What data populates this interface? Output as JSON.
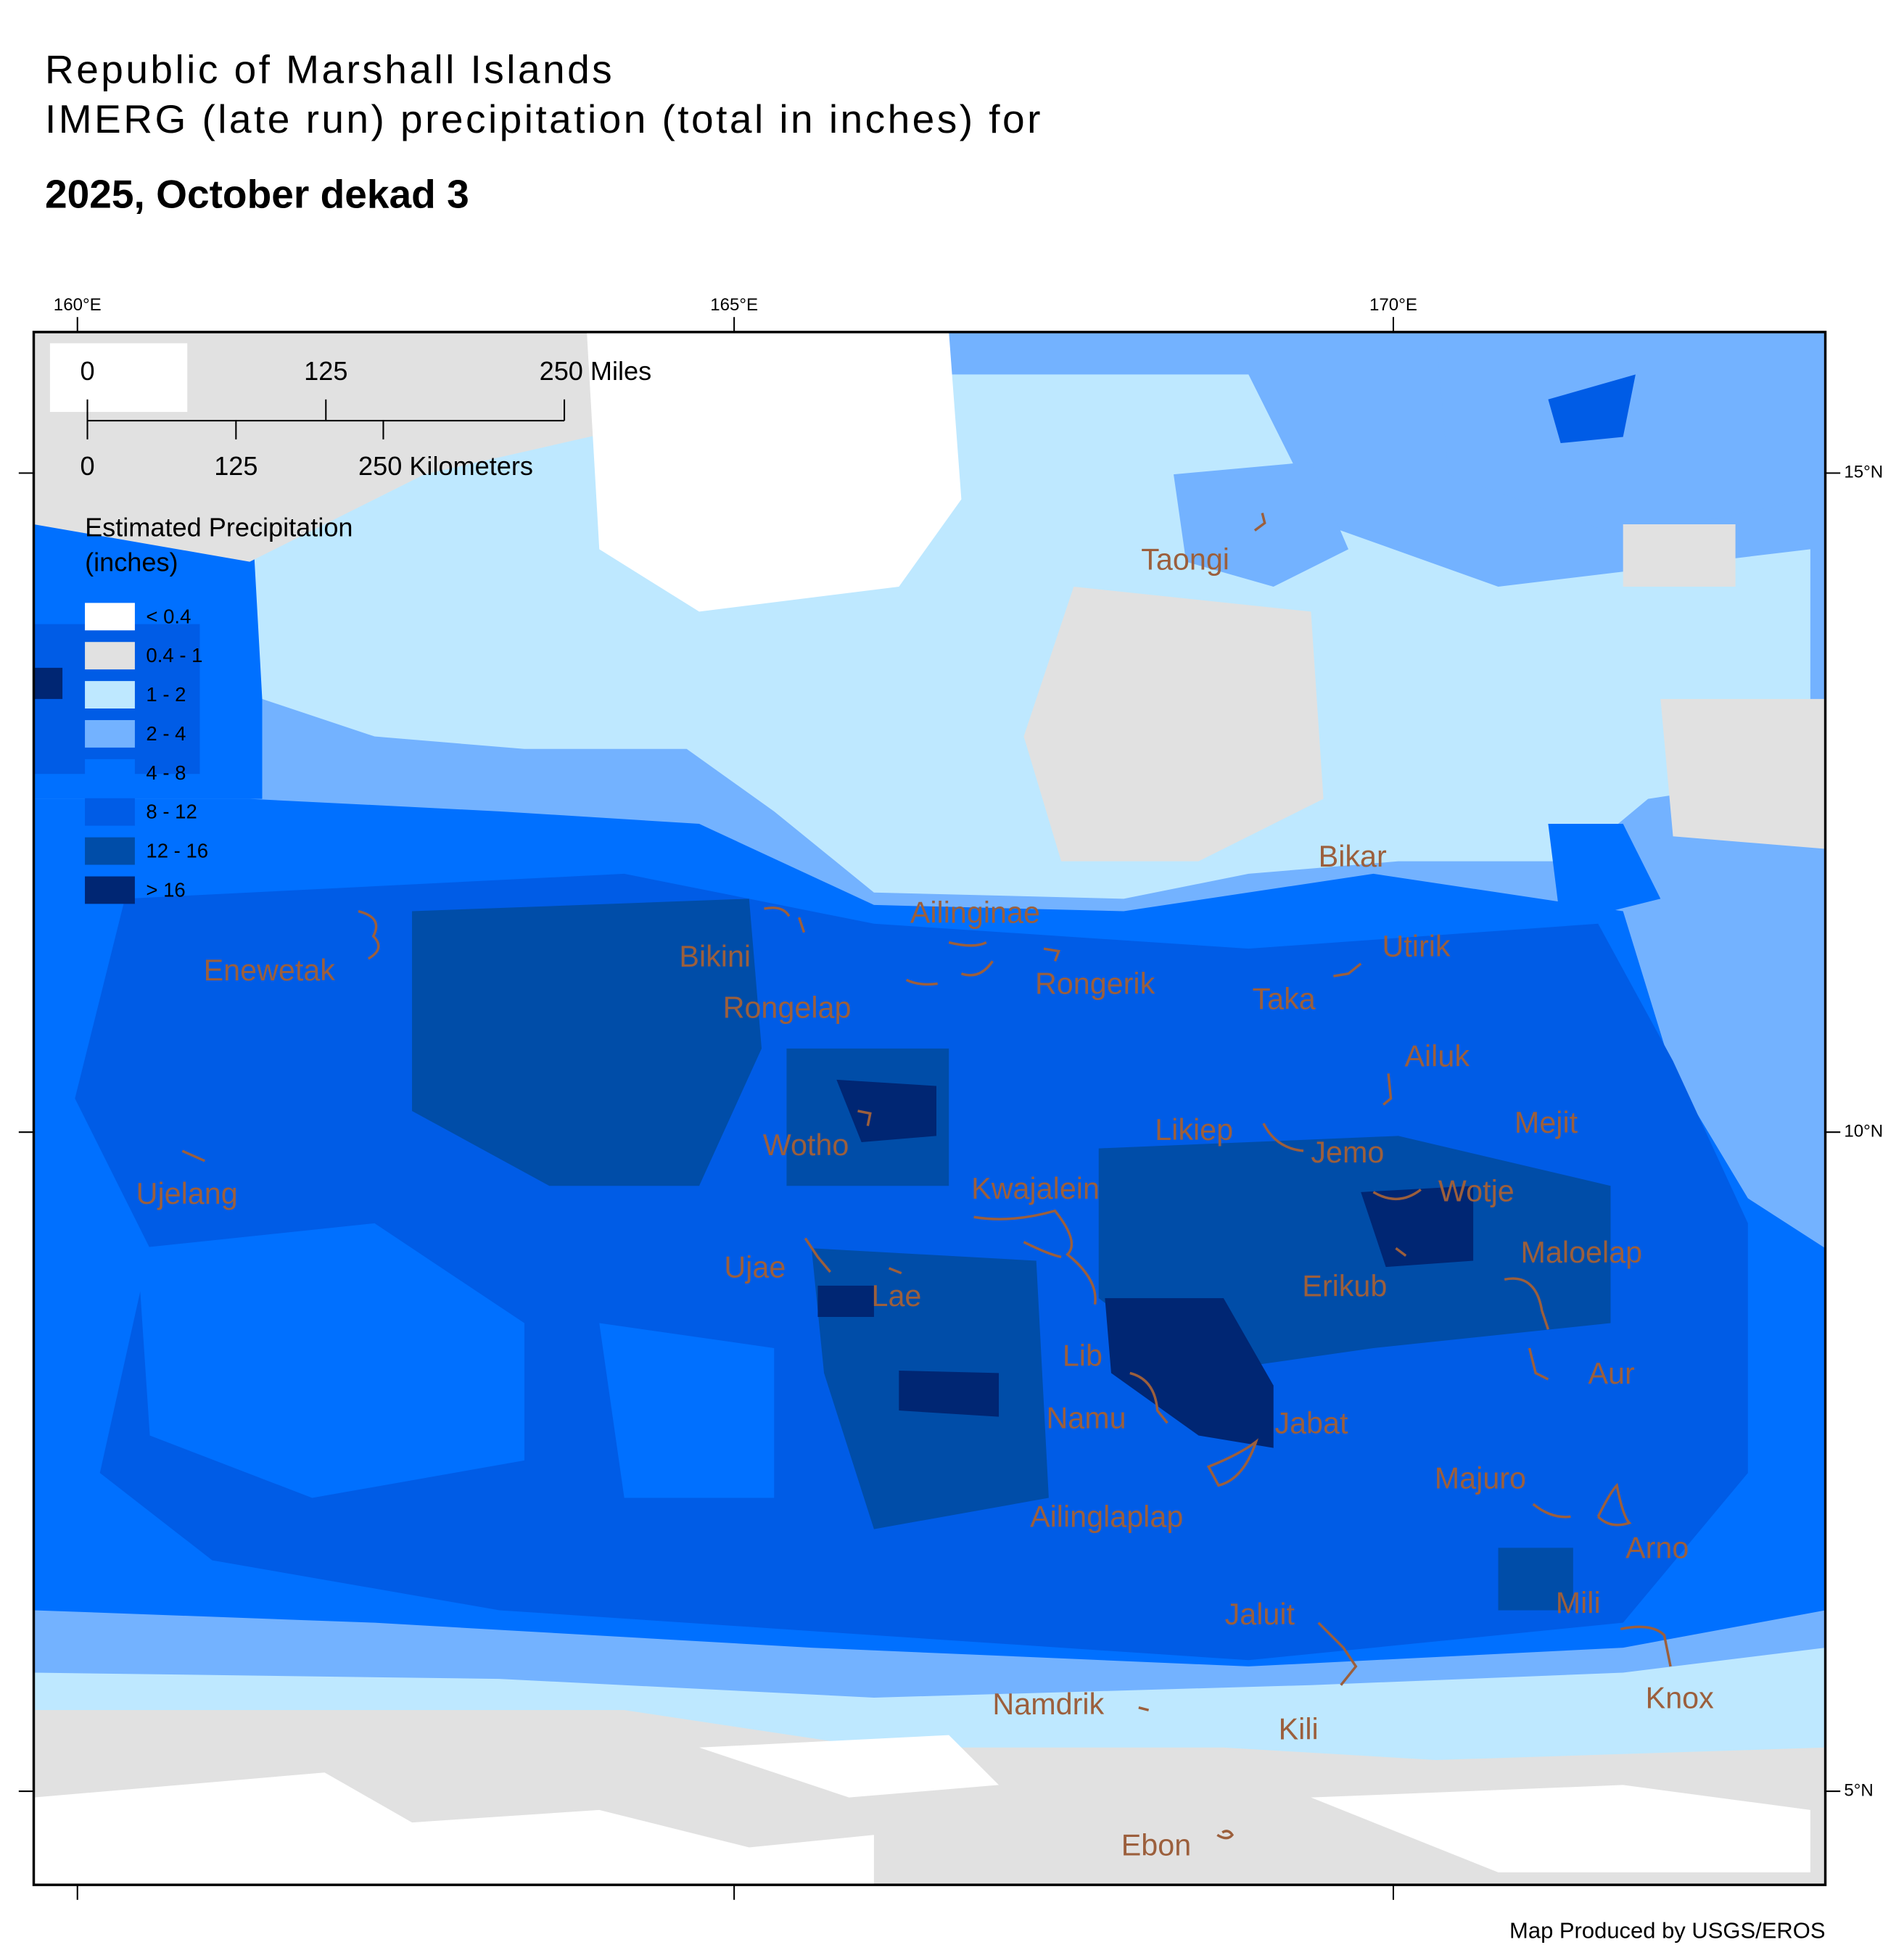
{
  "header": {
    "title_line1": "Republic of Marshall Islands",
    "title_line2": "IMERG (late run) precipitation (total in inches) for",
    "period": "2025, October dekad 3"
  },
  "graticule": {
    "longitudes": [
      "160°E",
      "165°E",
      "170°E"
    ],
    "latitudes": [
      "15°N",
      "10°N",
      "5°N"
    ]
  },
  "scale_bar": {
    "miles": [
      "0",
      "125",
      "250 Miles"
    ],
    "kilometers": [
      "0",
      "125",
      "250 Kilometers"
    ]
  },
  "legend": {
    "title_line1": "Estimated Precipitation",
    "title_line2": "(inches)",
    "items": [
      {
        "label": "< 0.4",
        "color": "#ffffff"
      },
      {
        "label": "0.4 - 1",
        "color": "#e1e1e1"
      },
      {
        "label": "1 - 2",
        "color": "#bee8ff"
      },
      {
        "label": "2 - 4",
        "color": "#73b2ff"
      },
      {
        "label": "4 - 8",
        "color": "#0070ff"
      },
      {
        "label": "8 - 12",
        "color": "#005ce6"
      },
      {
        "label": "12 - 16",
        "color": "#004da8"
      },
      {
        "label": "> 16",
        "color": "#002673"
      }
    ]
  },
  "places": [
    "Taongi",
    "Bikar",
    "Ailinginae",
    "Utirik",
    "Enewetak",
    "Bikini",
    "Rongerik",
    "Taka",
    "Rongelap",
    "Ailuk",
    "Mejit",
    "Likiep",
    "Wotho",
    "Jemo",
    "Kwajalein",
    "Wotje",
    "Ujelang",
    "Maloelap",
    "Ujae",
    "Erikub",
    "Lae",
    "Lib",
    "Aur",
    "Namu",
    "Jabat",
    "Majuro",
    "Ailinglaplap",
    "Arno",
    "Mili",
    "Jaluit",
    "Knox",
    "Namdrik",
    "Kili",
    "Ebon"
  ],
  "credit": "Map Produced by USGS/EROS"
}
